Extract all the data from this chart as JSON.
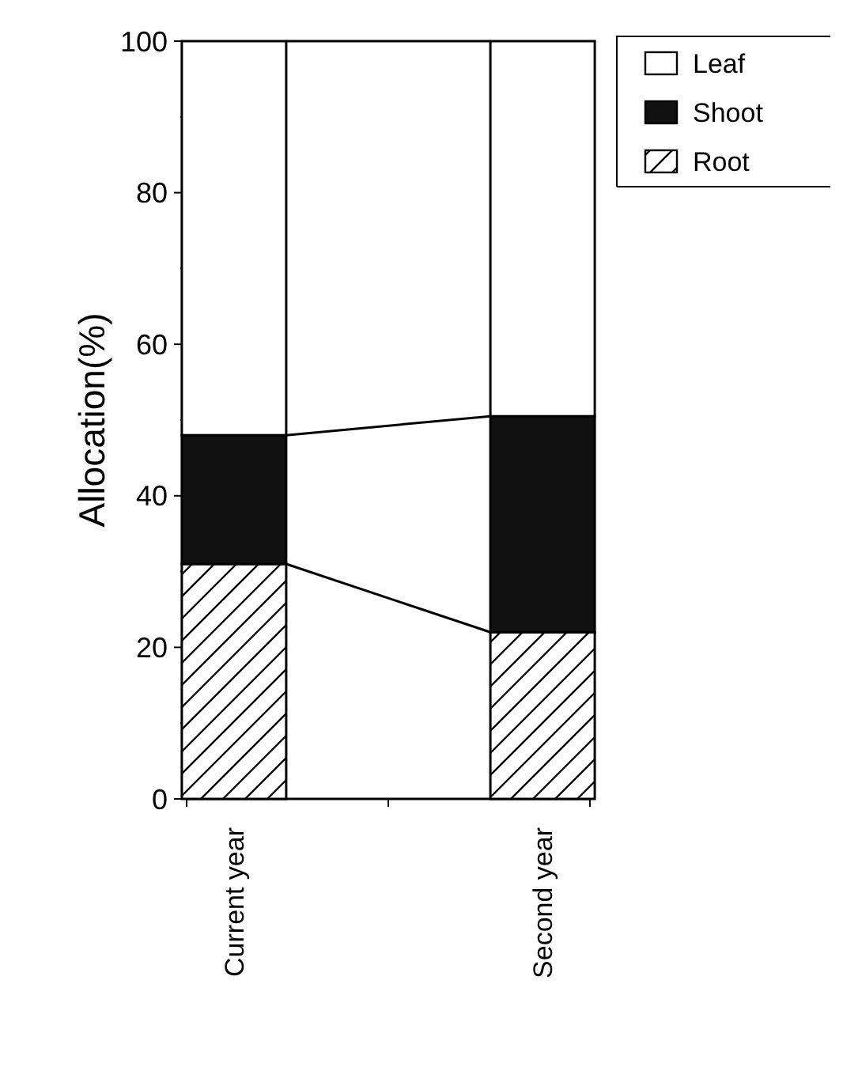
{
  "chart_data": {
    "type": "bar",
    "stacked": true,
    "ylabel": "Allocation(%)",
    "categories": [
      "Current year",
      "Second year"
    ],
    "series": [
      {
        "name": "Root",
        "color": "#000000",
        "values": [
          31,
          22
        ]
      },
      {
        "name": "Shoot",
        "color": "#111111",
        "values": [
          17,
          28.5
        ]
      },
      {
        "name": "Leaf",
        "color": "#ffffff",
        "values": [
          52,
          49.5
        ]
      }
    ],
    "ylim": [
      0,
      100
    ],
    "yticks": [
      0,
      {
        "value": 10,
        "label": null
      },
      20,
      {
        "value": 30,
        "label": null
      },
      40,
      {
        "value": 50,
        "label": null
      },
      60,
      {
        "value": 70,
        "label": null
      },
      80,
      {
        "value": 90,
        "label": null
      },
      100
    ],
    "legend": "top right"
  }
}
